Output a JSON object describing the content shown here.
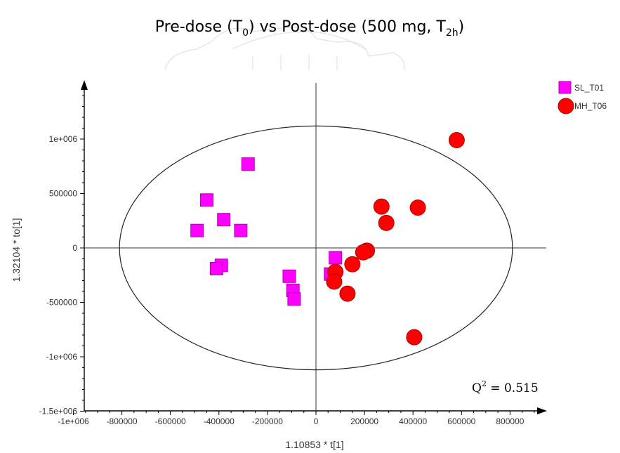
{
  "chart_data": {
    "type": "scatter",
    "title": {
      "pre": "Pre-dose (T",
      "sub1": "0",
      "mid": ") vs Post-dose (500 mg, T",
      "sub2": "2h",
      "post": ")"
    },
    "xlabel": "1.10853 * t[1]",
    "ylabel": "1.32104 * to[1]",
    "xlim": [
      -1000000,
      950000
    ],
    "ylim": [
      -1500000,
      1500000
    ],
    "x_ticks": [
      {
        "value": -1000000,
        "label": "-1e+006"
      },
      {
        "value": -800000,
        "label": "-800000"
      },
      {
        "value": -600000,
        "label": "-600000"
      },
      {
        "value": -400000,
        "label": "-400000"
      },
      {
        "value": -200000,
        "label": "-200000"
      },
      {
        "value": 0,
        "label": "0"
      },
      {
        "value": 200000,
        "label": "200000"
      },
      {
        "value": 400000,
        "label": "400000"
      },
      {
        "value": 600000,
        "label": "600000"
      },
      {
        "value": 800000,
        "label": "800000"
      }
    ],
    "y_ticks": [
      {
        "value": 1000000,
        "label": "1e+006"
      },
      {
        "value": 500000,
        "label": "500000"
      },
      {
        "value": 0,
        "label": "0"
      },
      {
        "value": -500000,
        "label": "-500000"
      },
      {
        "value": -1000000,
        "label": "-1e+006"
      },
      {
        "value": -1500000,
        "label": "-1.5e+006"
      }
    ],
    "ellipse": {
      "cx": 0,
      "cy": 0,
      "rx": 810000,
      "ry": 1120000
    },
    "series": [
      {
        "name": "SL_T01",
        "marker": "square",
        "color": "#ff00ff",
        "edge": "#b000b0",
        "x": [
          -280000,
          -450000,
          -490000,
          -380000,
          -310000,
          -390000,
          -410000,
          -110000,
          -95000,
          -90000,
          80000,
          60000
        ],
        "y": [
          770000,
          440000,
          160000,
          260000,
          160000,
          -160000,
          -190000,
          -260000,
          -390000,
          -470000,
          -90000,
          -240000
        ]
      },
      {
        "name": "MH_T06",
        "marker": "circle",
        "color": "#ff0000",
        "edge": "#b00000",
        "x": [
          580000,
          270000,
          420000,
          290000,
          210000,
          195000,
          150000,
          80000,
          75000,
          130000,
          405000
        ],
        "y": [
          990000,
          380000,
          370000,
          230000,
          -25000,
          -40000,
          -150000,
          -220000,
          -310000,
          -420000,
          -820000
        ]
      }
    ],
    "legend": "top-right",
    "annotation": {
      "text_main": "Q",
      "text_sup": "2",
      "text_rest": " = 0.515"
    }
  }
}
